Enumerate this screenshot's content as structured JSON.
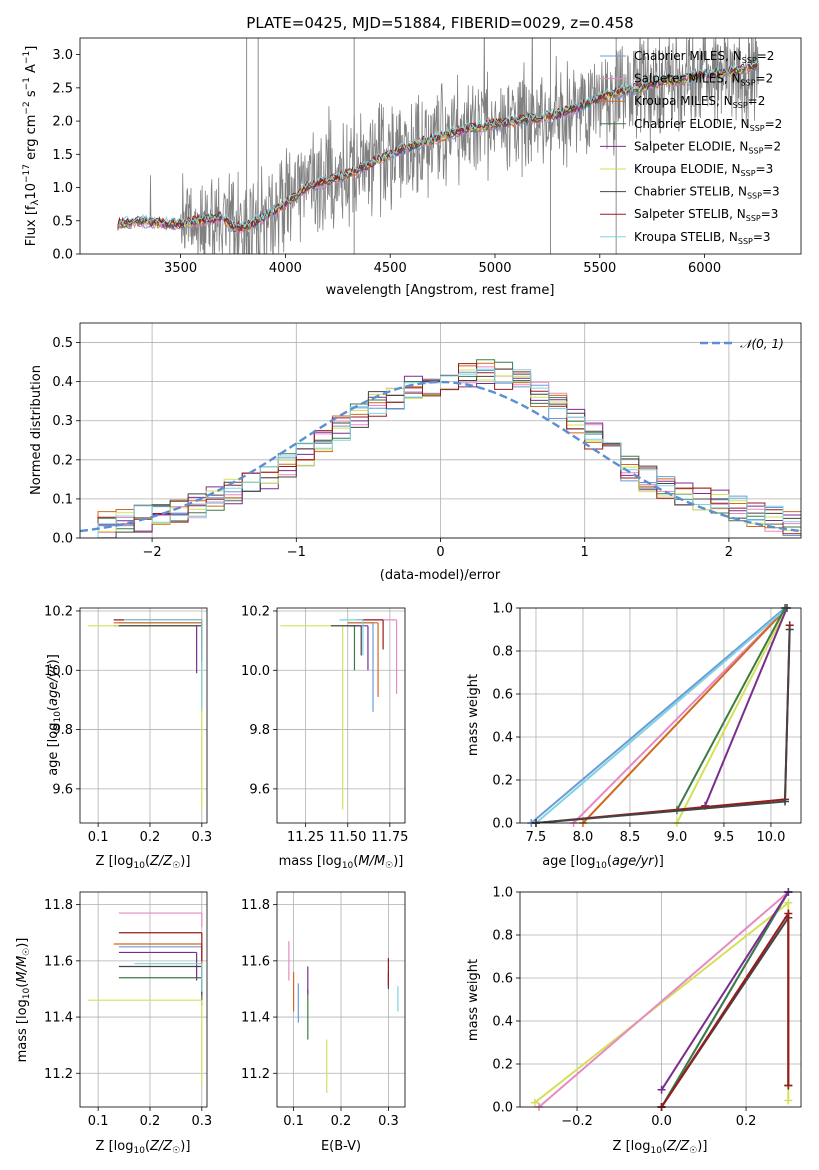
{
  "title": "PLATE=0425, MJD=51884, FIBERID=0029, z=0.458",
  "colors": {
    "Chabrier MILES": "#6a9bd8",
    "Salpeter MILES": "#e78ac3",
    "Kroupa MILES": "#d2691e",
    "Chabrier ELODIE": "#3e7a46",
    "Salpeter ELODIE": "#7b2d8e",
    "Kroupa ELODIE": "#d4e157",
    "Chabrier STELIB": "#444444",
    "Salpeter STELIB": "#9b1b1b",
    "Kroupa STELIB": "#7fd3e0",
    "data": "#808080"
  },
  "legend": [
    {
      "key": "Chabrier MILES",
      "text": "Chabrier MILES, N",
      "sub": "SSP",
      "tail": "=2"
    },
    {
      "key": "Salpeter MILES",
      "text": "Salpeter MILES, N",
      "sub": "SSP",
      "tail": "=2"
    },
    {
      "key": "Kroupa MILES",
      "text": "Kroupa MILES, N",
      "sub": "SSP",
      "tail": "=2"
    },
    {
      "key": "Chabrier ELODIE",
      "text": "Chabrier ELODIE, N",
      "sub": "SSP",
      "tail": "=2"
    },
    {
      "key": "Salpeter ELODIE",
      "text": "Salpeter ELODIE, N",
      "sub": "SSP",
      "tail": "=2"
    },
    {
      "key": "Kroupa ELODIE",
      "text": "Kroupa ELODIE, N",
      "sub": "SSP",
      "tail": "=3"
    },
    {
      "key": "Chabrier STELIB",
      "text": "Chabrier STELIB, N",
      "sub": "SSP",
      "tail": "=3"
    },
    {
      "key": "Salpeter STELIB",
      "text": "Salpeter STELIB, N",
      "sub": "SSP",
      "tail": "=3"
    },
    {
      "key": "Kroupa STELIB",
      "text": "Kroupa STELIB, N",
      "sub": "SSP",
      "tail": "=3"
    }
  ],
  "chart_data": [
    {
      "type": "line",
      "name": "spectrum",
      "xlabel": "wavelength [Angstrom, rest frame]",
      "ylabel": "Flux [f_λ 10^-17 erg cm^-2 s^-1 A^-1]",
      "xlim": [
        3020,
        6460
      ],
      "ylim": [
        0,
        3.25
      ],
      "xticks": [
        3500,
        4000,
        4500,
        5000,
        5500,
        6000
      ],
      "yticks": [
        0.0,
        0.5,
        1.0,
        1.5,
        2.0,
        2.5,
        3.0
      ],
      "grid": false,
      "legend": "top-right",
      "data_range": [
        3200,
        6260
      ],
      "continuum": [
        [
          3200,
          0.45
        ],
        [
          3300,
          0.5
        ],
        [
          3450,
          0.45
        ],
        [
          3500,
          0.45
        ],
        [
          3600,
          0.5
        ],
        [
          3700,
          0.55
        ],
        [
          3750,
          0.4
        ],
        [
          3800,
          0.4
        ],
        [
          3900,
          0.55
        ],
        [
          4000,
          0.75
        ],
        [
          4100,
          1.0
        ],
        [
          4200,
          1.1
        ],
        [
          4300,
          1.2
        ],
        [
          4400,
          1.35
        ],
        [
          4500,
          1.5
        ],
        [
          4600,
          1.62
        ],
        [
          4700,
          1.72
        ],
        [
          4800,
          1.82
        ],
        [
          4900,
          1.9
        ],
        [
          5000,
          1.95
        ],
        [
          5100,
          2.0
        ],
        [
          5200,
          2.05
        ],
        [
          5300,
          2.1
        ],
        [
          5400,
          2.2
        ],
        [
          5500,
          2.35
        ],
        [
          5600,
          2.45
        ],
        [
          5700,
          2.5
        ],
        [
          5800,
          2.6
        ],
        [
          5900,
          2.62
        ],
        [
          6000,
          2.7
        ],
        [
          6100,
          2.72
        ],
        [
          6200,
          2.8
        ],
        [
          6260,
          2.85
        ]
      ]
    },
    {
      "type": "line",
      "name": "residuals",
      "xlabel": "(data-model)/error",
      "ylabel": "Normed distribution",
      "xlim": [
        -2.5,
        2.5
      ],
      "ylim": [
        0,
        0.55
      ],
      "xticks": [
        -2,
        -1,
        0,
        1,
        2
      ],
      "yticks": [
        0.0,
        0.1,
        0.2,
        0.3,
        0.4,
        0.5
      ],
      "grid": true,
      "legend": "top-right",
      "legend_text": "𝒩(0, 1)",
      "bins": 40,
      "reference": "normal(0,1)",
      "histogram_base": [
        0.025,
        0.035,
        0.045,
        0.05,
        0.055,
        0.07,
        0.085,
        0.105,
        0.12,
        0.135,
        0.16,
        0.19,
        0.21,
        0.25,
        0.28,
        0.31,
        0.34,
        0.36,
        0.38,
        0.39,
        0.41,
        0.42,
        0.43,
        0.415,
        0.4,
        0.37,
        0.34,
        0.3,
        0.26,
        0.22,
        0.18,
        0.15,
        0.13,
        0.11,
        0.1,
        0.09,
        0.075,
        0.06,
        0.05,
        0.04
      ]
    },
    {
      "type": "scatter",
      "name": "age-vs-Z",
      "xlabel": "Z [log10(Z/Z☉)]",
      "ylabel": "age  [log10(age/yr)]",
      "xlim": [
        0.065,
        0.31
      ],
      "ylim": [
        9.485,
        10.21
      ],
      "xticks": [
        0.1,
        0.2,
        0.3
      ],
      "yticks": [
        9.6,
        9.8,
        10.0,
        10.2
      ],
      "grid": true,
      "points": [
        {
          "key": "Chabrier MILES",
          "x": 0.3,
          "y": 10.16,
          "xlo": 0.14,
          "yerr": 0.3
        },
        {
          "key": "Salpeter MILES",
          "x": 0.3,
          "y": 10.17,
          "xlo": 0.16,
          "yerr": 0.05
        },
        {
          "key": "Kroupa MILES",
          "x": 0.3,
          "y": 10.16,
          "xlo": 0.13,
          "yerr": 0.25
        },
        {
          "key": "Chabrier ELODIE",
          "x": 0.3,
          "y": 10.15,
          "xlo": 0.13,
          "yerr": 0.05
        },
        {
          "key": "Salpeter ELODIE",
          "x": 0.29,
          "y": 10.15,
          "xlo": 0.14,
          "yerr": 0.16
        },
        {
          "key": "Kroupa ELODIE",
          "x": 0.3,
          "y": 10.15,
          "xlo": 0.08,
          "yerr": 0.62
        },
        {
          "key": "Chabrier STELIB",
          "x": 0.3,
          "y": 10.15,
          "xlo": 0.14,
          "yerr": 0.12
        },
        {
          "key": "Salpeter STELIB",
          "x": 0.3,
          "y": 10.17,
          "xlo": 0.13,
          "yerr": 0.1
        },
        {
          "key": "Kroupa STELIB",
          "x": 0.3,
          "y": 10.17,
          "xlo": 0.15,
          "yerr": 0.3
        }
      ]
    },
    {
      "type": "scatter",
      "name": "age-vs-mass",
      "xlabel": "mass [log10(M/M☉)]",
      "ylabel": "",
      "xlim": [
        11.08,
        11.84
      ],
      "ylim": [
        9.485,
        10.21
      ],
      "xticks": [
        11.25,
        11.5,
        11.75
      ],
      "yticks": [
        9.6,
        9.8,
        10.0,
        10.2
      ],
      "grid": true,
      "points": [
        {
          "key": "Chabrier MILES",
          "x": 11.65,
          "y": 10.16,
          "xlo": 11.5,
          "yerr": 0.3
        },
        {
          "key": "Salpeter MILES",
          "x": 11.79,
          "y": 10.17,
          "xlo": 11.6,
          "yerr": 0.25
        },
        {
          "key": "Kroupa MILES",
          "x": 11.68,
          "y": 10.16,
          "xlo": 11.5,
          "yerr": 0.25
        },
        {
          "key": "Chabrier ELODIE",
          "x": 11.54,
          "y": 10.15,
          "xlo": 11.4,
          "yerr": 0.15
        },
        {
          "key": "Salpeter ELODIE",
          "x": 11.62,
          "y": 10.15,
          "xlo": 11.5,
          "yerr": 0.15
        },
        {
          "key": "Kroupa ELODIE",
          "x": 11.47,
          "y": 10.15,
          "xlo": 11.1,
          "yerr": 0.62
        },
        {
          "key": "Chabrier STELIB",
          "x": 11.58,
          "y": 10.15,
          "xlo": 11.4,
          "yerr": 0.1
        },
        {
          "key": "Salpeter STELIB",
          "x": 11.71,
          "y": 10.17,
          "xlo": 11.55,
          "yerr": 0.1
        },
        {
          "key": "Kroupa STELIB",
          "x": 11.59,
          "y": 10.17,
          "xlo": 11.45,
          "yerr": 0.12
        }
      ]
    },
    {
      "type": "line",
      "name": "mass-weight-vs-age",
      "xlabel": "age  [log10(age/yr)]",
      "ylabel": "mass weight",
      "xlim": [
        7.33,
        10.32
      ],
      "ylim": [
        0,
        1.0
      ],
      "xticks": [
        7.5,
        8.0,
        8.5,
        9.0,
        9.5,
        10.0
      ],
      "yticks": [
        0.0,
        0.2,
        0.4,
        0.6,
        0.8,
        1.0
      ],
      "grid": true,
      "series": [
        {
          "key": "Kroupa ELODIE",
          "x": [
            9.0,
            10.17
          ],
          "y": [
            0.0,
            1.0
          ]
        },
        {
          "key": "Salpeter MILES",
          "x": [
            7.9,
            10.17
          ],
          "y": [
            0.0,
            1.0
          ]
        },
        {
          "key": "Kroupa MILES",
          "x": [
            8.0,
            10.17
          ],
          "y": [
            0.0,
            1.0
          ]
        },
        {
          "key": "Chabrier MILES",
          "x": [
            7.45,
            10.15
          ],
          "y": [
            0.0,
            1.0
          ]
        },
        {
          "key": "Kroupa STELIB",
          "x": [
            7.5,
            10.17
          ],
          "y": [
            0.0,
            1.0
          ]
        },
        {
          "key": "Salpeter ELODIE",
          "x": [
            9.3,
            10.17
          ],
          "y": [
            0.08,
            1.0
          ]
        },
        {
          "key": "Chabrier ELODIE",
          "x": [
            9.0,
            10.15
          ],
          "y": [
            0.06,
            1.0
          ]
        },
        {
          "key": "Salpeter STELIB",
          "x": [
            7.5,
            10.15,
            10.2
          ],
          "y": [
            0.0,
            0.11,
            0.92
          ]
        },
        {
          "key": "Chabrier STELIB",
          "x": [
            7.5,
            10.15,
            10.2
          ],
          "y": [
            0.0,
            0.1,
            0.9
          ]
        }
      ]
    },
    {
      "type": "scatter",
      "name": "mass-vs-Z",
      "xlabel": "Z [log10(Z/Z☉)]",
      "ylabel": "mass [log10(M/M☉)]",
      "xlim": [
        0.065,
        0.31
      ],
      "ylim": [
        11.08,
        11.845
      ],
      "xticks": [
        0.1,
        0.2,
        0.3
      ],
      "yticks": [
        11.2,
        11.4,
        11.6,
        11.8
      ],
      "grid": true,
      "points": [
        {
          "key": "Chabrier MILES",
          "x": 0.3,
          "y": 11.65,
          "xlo": 0.14,
          "yerr": 0.15
        },
        {
          "key": "Salpeter MILES",
          "x": 0.3,
          "y": 11.77,
          "xlo": 0.14,
          "yerr": 0.05
        },
        {
          "key": "Kroupa MILES",
          "x": 0.3,
          "y": 11.66,
          "xlo": 0.13,
          "yerr": 0.15
        },
        {
          "key": "Chabrier ELODIE",
          "x": 0.3,
          "y": 11.54,
          "xlo": 0.14,
          "yerr": 0.1
        },
        {
          "key": "Salpeter ELODIE",
          "x": 0.29,
          "y": 11.63,
          "xlo": 0.14,
          "yerr": 0.1
        },
        {
          "key": "Kroupa ELODIE",
          "x": 0.3,
          "y": 11.46,
          "xlo": 0.08,
          "yerr": 0.3
        },
        {
          "key": "Chabrier STELIB",
          "x": 0.3,
          "y": 11.58,
          "xlo": 0.14,
          "yerr": 0.1
        },
        {
          "key": "Salpeter STELIB",
          "x": 0.3,
          "y": 11.7,
          "xlo": 0.14,
          "yerr": 0.1
        },
        {
          "key": "Kroupa STELIB",
          "x": 0.3,
          "y": 11.59,
          "xlo": 0.17,
          "yerr": 0.1
        }
      ]
    },
    {
      "type": "scatter",
      "name": "mass-vs-EBV",
      "xlabel": "E(B-V)",
      "ylabel": "",
      "xlim": [
        0.065,
        0.335
      ],
      "ylim": [
        11.08,
        11.845
      ],
      "xticks": [
        0.1,
        0.2,
        0.3
      ],
      "yticks": [
        11.2,
        11.4,
        11.6,
        11.8
      ],
      "grid": true,
      "points": [
        {
          "key": "Chabrier MILES",
          "x": 0.11,
          "y": 11.52,
          "yerr": 0.14
        },
        {
          "key": "Salpeter MILES",
          "x": 0.09,
          "y": 11.67,
          "yerr": 0.14
        },
        {
          "key": "Kroupa MILES",
          "x": 0.1,
          "y": 11.56,
          "yerr": 0.14
        },
        {
          "key": "Chabrier ELODIE",
          "x": 0.13,
          "y": 11.5,
          "yerr": 0.18
        },
        {
          "key": "Salpeter ELODIE",
          "x": 0.13,
          "y": 11.58,
          "yerr": 0.1
        },
        {
          "key": "Kroupa ELODIE",
          "x": 0.17,
          "y": 11.32,
          "yerr": 0.19
        },
        {
          "key": "Chabrier STELIB",
          "x": 0.3,
          "y": 11.56,
          "yerr": 0.06
        },
        {
          "key": "Salpeter STELIB",
          "x": 0.3,
          "y": 11.61,
          "yerr": 0.1
        },
        {
          "key": "Kroupa STELIB",
          "x": 0.32,
          "y": 11.51,
          "yerr": 0.09
        }
      ]
    },
    {
      "type": "line",
      "name": "mass-weight-vs-Z",
      "xlabel": "Z [log10(Z/Z☉)]",
      "ylabel": "mass weight",
      "xlim": [
        -0.335,
        0.33
      ],
      "ylim": [
        0,
        1.0
      ],
      "xticks": [
        -0.2,
        0.0,
        0.2
      ],
      "yticks": [
        0.0,
        0.2,
        0.4,
        0.6,
        0.8,
        1.0
      ],
      "grid": true,
      "series": [
        {
          "key": "Kroupa ELODIE",
          "x": [
            -0.3,
            0.3,
            0.3
          ],
          "y": [
            0.02,
            0.95,
            0.03
          ]
        },
        {
          "key": "Salpeter MILES",
          "x": [
            -0.29,
            0.3
          ],
          "y": [
            0.0,
            1.0
          ]
        },
        {
          "key": "Chabrier MILES",
          "x": [
            0.0,
            0.3
          ],
          "y": [
            0.0,
            1.0
          ]
        },
        {
          "key": "Kroupa STELIB",
          "x": [
            0.0,
            0.3
          ],
          "y": [
            0.0,
            1.0
          ]
        },
        {
          "key": "Chabrier ELODIE",
          "x": [
            0.0,
            0.3
          ],
          "y": [
            0.0,
            1.0
          ]
        },
        {
          "key": "Salpeter ELODIE",
          "x": [
            0.0,
            0.3
          ],
          "y": [
            0.08,
            1.0
          ]
        },
        {
          "key": "Chabrier STELIB",
          "x": [
            0.0,
            0.3,
            0.3
          ],
          "y": [
            0.0,
            0.88,
            0.1
          ]
        },
        {
          "key": "Salpeter STELIB",
          "x": [
            0.0,
            0.3,
            0.3
          ],
          "y": [
            0.0,
            0.9,
            0.1
          ]
        }
      ]
    }
  ]
}
